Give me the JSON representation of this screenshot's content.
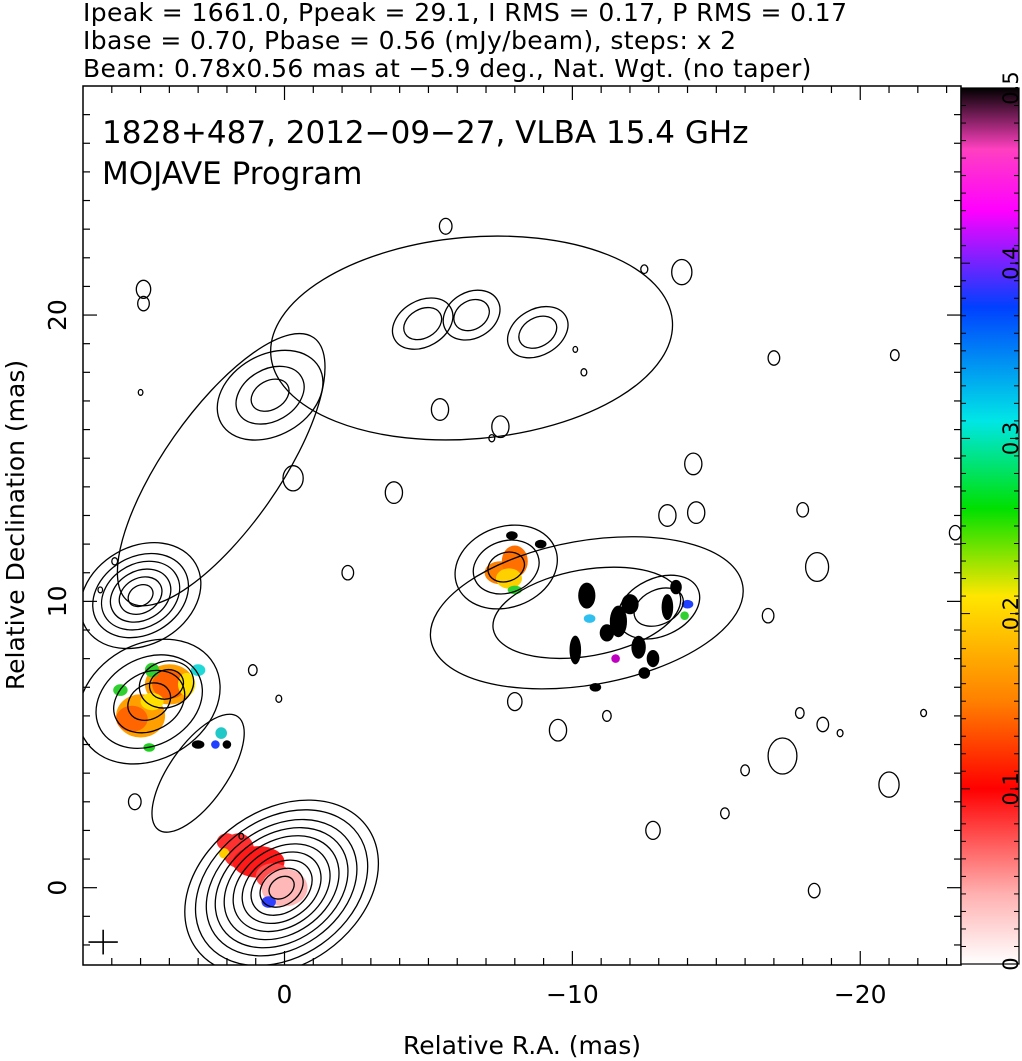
{
  "header": {
    "line1": "Ipeak = 1661.0, Ppeak = 29.1, I RMS = 0.17, P RMS = 0.17",
    "line2": "Ibase = 0.70, Pbase = 0.56 (mJy/beam), steps: x 2",
    "line3": "Beam: 0.78x0.56 mas at −5.9 deg., Nat. Wgt. (no taper)"
  },
  "chart_data": {
    "type": "heatmap",
    "title": "1828+487, 2012−09−27, VLBA 15.4 GHz",
    "subtitle": "MOJAVE Program",
    "xlabel": "Relative R.A. (mas)",
    "ylabel": "Relative Declination (mas)",
    "xlim": [
      7,
      -23.5
    ],
    "ylim": [
      -2.7,
      28
    ],
    "x_ticks": [
      0,
      -10,
      -20
    ],
    "x_tick_labels": [
      "0",
      "−10",
      "−20"
    ],
    "y_ticks": [
      0,
      10,
      20
    ],
    "y_tick_labels": [
      "0",
      "10",
      "20"
    ],
    "colorbar": {
      "range": [
        0,
        0.5
      ],
      "ticks": [
        0,
        0.1,
        0.2,
        0.3,
        0.4,
        0.5
      ],
      "tick_labels": [
        "0",
        "0.1",
        "0.2",
        "0.3",
        "0.4",
        "0.5"
      ],
      "colors": [
        "#ffffff",
        "#ffb0b0",
        "#ff0000",
        "#ff8000",
        "#ffe600",
        "#00e000",
        "#00e6e6",
        "#0040ff",
        "#ff00ff",
        "#ff40c0",
        "#000000"
      ]
    },
    "beam": {
      "major": 0.78,
      "minor": 0.56,
      "pa_deg": -5.9,
      "x": 6.3,
      "y": -1.9
    },
    "contour_groups": [
      {
        "name": "core",
        "x": 0.1,
        "y": 0.0,
        "radii": [
          0.35,
          0.6,
          0.85,
          1.1,
          1.35,
          1.6,
          1.85,
          2.1,
          2.4,
          2.7
        ],
        "elong": 1.35,
        "angle_deg": 35
      },
      {
        "name": "inner-jet",
        "x": 3.0,
        "y": 4.0,
        "radii": [
          1.0
        ],
        "elong": 2.4,
        "angle_deg": 55
      },
      {
        "name": "knot-B",
        "x": 4.7,
        "y": 6.5,
        "radii": [
          0.6,
          1.0,
          1.5,
          2.0
        ],
        "elong": 1.3,
        "angle_deg": 30
      },
      {
        "name": "knot-A",
        "x": 4.1,
        "y": 7.1,
        "radii": [
          0.5,
          0.8
        ],
        "elong": 1.2,
        "angle_deg": 20
      },
      {
        "name": "east-blob",
        "x": 5.0,
        "y": 10.2,
        "radii": [
          0.35,
          0.6,
          0.85,
          1.1,
          1.35,
          1.7
        ],
        "elong": 1.3,
        "angle_deg": 30
      },
      {
        "name": "east-arm",
        "x": 2.2,
        "y": 14.6,
        "radii": [
          2.0
        ],
        "elong": 2.8,
        "angle_deg": 55
      },
      {
        "name": "east-top",
        "x": 0.5,
        "y": 17.2,
        "radii": [
          0.5,
          0.9,
          1.4
        ],
        "elong": 1.4,
        "angle_deg": 30
      },
      {
        "name": "mid-clump",
        "x": -7.7,
        "y": 11.2,
        "radii": [
          0.5,
          0.9,
          1.4
        ],
        "elong": 1.3,
        "angle_deg": 20
      },
      {
        "name": "west-jet",
        "x": -10.5,
        "y": 9.6,
        "radii": [
          1.5,
          2.5
        ],
        "elong": 2.2,
        "angle_deg": 10
      },
      {
        "name": "west-knot",
        "x": -13.0,
        "y": 9.8,
        "radii": [
          0.6,
          1.0
        ],
        "elong": 1.5,
        "angle_deg": 25
      },
      {
        "name": "north-region",
        "x": -6.5,
        "y": 19.2,
        "radii": [
          3.5
        ],
        "elong": 2.0,
        "angle_deg": 5
      },
      {
        "name": "north-knot-1",
        "x": -4.8,
        "y": 19.7,
        "radii": [
          0.5,
          0.8
        ],
        "elong": 1.4,
        "angle_deg": 30
      },
      {
        "name": "north-knot-2",
        "x": -6.5,
        "y": 20.0,
        "radii": [
          0.5,
          0.8
        ],
        "elong": 1.3,
        "angle_deg": 30
      },
      {
        "name": "north-knot-3",
        "x": -8.8,
        "y": 19.4,
        "radii": [
          0.5,
          0.8
        ],
        "elong": 1.4,
        "angle_deg": 30
      }
    ],
    "noise_contours": [
      {
        "x": 4.9,
        "y": 20.9,
        "r": 0.25
      },
      {
        "x": 4.9,
        "y": 20.4,
        "r": 0.2
      },
      {
        "x": 5.0,
        "y": 17.3,
        "r": 0.08
      },
      {
        "x": 5.9,
        "y": 11.4,
        "r": 0.1
      },
      {
        "x": 6.4,
        "y": 10.4,
        "r": 0.08
      },
      {
        "x": -2.2,
        "y": 11.0,
        "r": 0.2
      },
      {
        "x": 1.1,
        "y": 7.6,
        "r": 0.15
      },
      {
        "x": 0.2,
        "y": 6.6,
        "r": 0.1
      },
      {
        "x": 5.2,
        "y": 3.0,
        "r": 0.22
      },
      {
        "x": 1.5,
        "y": 1.8,
        "r": 0.08
      },
      {
        "x": -5.6,
        "y": 23.1,
        "r": 0.22
      },
      {
        "x": -3.8,
        "y": 13.8,
        "r": 0.3
      },
      {
        "x": -7.5,
        "y": 16.1,
        "r": 0.3
      },
      {
        "x": -5.4,
        "y": 16.7,
        "r": 0.3
      },
      {
        "x": -14.2,
        "y": 14.8,
        "r": 0.3
      },
      {
        "x": -13.3,
        "y": 13.0,
        "r": 0.3
      },
      {
        "x": -14.3,
        "y": 13.1,
        "r": 0.3
      },
      {
        "x": -12.5,
        "y": 21.6,
        "r": 0.12
      },
      {
        "x": -13.8,
        "y": 21.5,
        "r": 0.35
      },
      {
        "x": -17.0,
        "y": 18.5,
        "r": 0.2
      },
      {
        "x": -21.2,
        "y": 18.6,
        "r": 0.15
      },
      {
        "x": -10.4,
        "y": 18.0,
        "r": 0.1
      },
      {
        "x": -10.1,
        "y": 18.8,
        "r": 0.08
      },
      {
        "x": -7.2,
        "y": 15.7,
        "r": 0.1
      },
      {
        "x": -18.0,
        "y": 13.2,
        "r": 0.2
      },
      {
        "x": -18.5,
        "y": 11.2,
        "r": 0.4
      },
      {
        "x": -16.8,
        "y": 9.5,
        "r": 0.2
      },
      {
        "x": -8.0,
        "y": 6.5,
        "r": 0.25
      },
      {
        "x": -9.5,
        "y": 5.5,
        "r": 0.3
      },
      {
        "x": -11.2,
        "y": 6.0,
        "r": 0.15
      },
      {
        "x": -17.3,
        "y": 4.6,
        "r": 0.5
      },
      {
        "x": -16.0,
        "y": 4.1,
        "r": 0.15
      },
      {
        "x": -15.3,
        "y": 2.6,
        "r": 0.15
      },
      {
        "x": -12.8,
        "y": 2.0,
        "r": 0.25
      },
      {
        "x": -18.7,
        "y": 5.7,
        "r": 0.2
      },
      {
        "x": -19.3,
        "y": 5.4,
        "r": 0.1
      },
      {
        "x": -17.9,
        "y": 6.1,
        "r": 0.15
      },
      {
        "x": -22.2,
        "y": 6.1,
        "r": 0.1
      },
      {
        "x": -21.0,
        "y": 3.6,
        "r": 0.35
      },
      {
        "x": -18.4,
        "y": -0.1,
        "r": 0.2
      },
      {
        "x": -23.3,
        "y": 12.4,
        "r": 0.2
      },
      {
        "x": -0.3,
        "y": 14.3,
        "r": 0.35
      }
    ],
    "pol_patches": [
      {
        "x": 1.6,
        "y": 1.3,
        "rx": 0.55,
        "ry": 0.6,
        "color": "#ff3030"
      },
      {
        "x": 0.9,
        "y": 0.9,
        "rx": 0.9,
        "ry": 0.55,
        "color": "#ff1a1a"
      },
      {
        "x": 0.4,
        "y": 0.4,
        "rx": 0.6,
        "ry": 0.45,
        "color": "#ff5050"
      },
      {
        "x": 2.0,
        "y": 1.6,
        "rx": 0.35,
        "ry": 0.3,
        "color": "#ff3030"
      },
      {
        "x": 2.1,
        "y": 1.2,
        "rx": 0.18,
        "ry": 0.18,
        "color": "#ffcc00"
      },
      {
        "x": 0.0,
        "y": 0.0,
        "rx": 0.8,
        "ry": 0.65,
        "color": "#ffb8b8"
      },
      {
        "x": 0.55,
        "y": -0.5,
        "rx": 0.25,
        "ry": 0.2,
        "color": "#3040ff"
      },
      {
        "x": 4.0,
        "y": 7.1,
        "rx": 0.85,
        "ry": 0.7,
        "color": "#ffa000"
      },
      {
        "x": 4.0,
        "y": 7.1,
        "rx": 0.6,
        "ry": 0.5,
        "color": "#ff6000"
      },
      {
        "x": 5.0,
        "y": 6.0,
        "rx": 0.85,
        "ry": 0.75,
        "color": "#ffa000"
      },
      {
        "x": 5.3,
        "y": 5.9,
        "rx": 0.55,
        "ry": 0.45,
        "color": "#ff6500"
      },
      {
        "x": 3.4,
        "y": 7.1,
        "rx": 0.3,
        "ry": 0.4,
        "color": "#ffe000"
      },
      {
        "x": 4.6,
        "y": 6.5,
        "rx": 0.4,
        "ry": 0.3,
        "color": "#ffe000"
      },
      {
        "x": 4.6,
        "y": 7.6,
        "rx": 0.25,
        "ry": 0.25,
        "color": "#30d030"
      },
      {
        "x": 3.0,
        "y": 7.6,
        "rx": 0.25,
        "ry": 0.2,
        "color": "#1fd8d8"
      },
      {
        "x": 5.7,
        "y": 6.9,
        "rx": 0.25,
        "ry": 0.2,
        "color": "#30d030"
      },
      {
        "x": 2.2,
        "y": 5.4,
        "rx": 0.2,
        "ry": 0.2,
        "color": "#20c8c8"
      },
      {
        "x": 2.4,
        "y": 5.0,
        "rx": 0.15,
        "ry": 0.15,
        "color": "#2040ff"
      },
      {
        "x": 2.0,
        "y": 5.0,
        "rx": 0.15,
        "ry": 0.15,
        "color": "#000000"
      },
      {
        "x": 4.7,
        "y": 4.9,
        "rx": 0.2,
        "ry": 0.15,
        "color": "#20d020"
      },
      {
        "x": 3.0,
        "y": 5.0,
        "rx": 0.22,
        "ry": 0.15,
        "color": "#000000"
      },
      {
        "x": -7.5,
        "y": 11.0,
        "rx": 0.55,
        "ry": 0.4,
        "color": "#ff8000"
      },
      {
        "x": -8.0,
        "y": 11.4,
        "rx": 0.45,
        "ry": 0.55,
        "color": "#ff7000"
      },
      {
        "x": -7.8,
        "y": 10.8,
        "rx": 0.45,
        "ry": 0.35,
        "color": "#ffd000"
      },
      {
        "x": -8.0,
        "y": 10.4,
        "rx": 0.25,
        "ry": 0.15,
        "color": "#30d030"
      },
      {
        "x": -7.9,
        "y": 12.3,
        "rx": 0.2,
        "ry": 0.15,
        "color": "#000000"
      },
      {
        "x": -8.9,
        "y": 12.0,
        "rx": 0.2,
        "ry": 0.15,
        "color": "#000000"
      },
      {
        "x": -10.5,
        "y": 10.2,
        "rx": 0.3,
        "ry": 0.45,
        "color": "#000000"
      },
      {
        "x": -11.6,
        "y": 9.3,
        "rx": 0.3,
        "ry": 0.55,
        "color": "#000000"
      },
      {
        "x": -12.0,
        "y": 9.9,
        "rx": 0.3,
        "ry": 0.35,
        "color": "#000000"
      },
      {
        "x": -10.1,
        "y": 8.3,
        "rx": 0.2,
        "ry": 0.5,
        "color": "#000000"
      },
      {
        "x": -12.3,
        "y": 8.4,
        "rx": 0.25,
        "ry": 0.4,
        "color": "#000000"
      },
      {
        "x": -12.8,
        "y": 8.0,
        "rx": 0.22,
        "ry": 0.3,
        "color": "#000000"
      },
      {
        "x": -13.3,
        "y": 9.8,
        "rx": 0.2,
        "ry": 0.45,
        "color": "#000000"
      },
      {
        "x": -13.6,
        "y": 10.5,
        "rx": 0.2,
        "ry": 0.25,
        "color": "#000000"
      },
      {
        "x": -14.0,
        "y": 9.9,
        "rx": 0.2,
        "ry": 0.15,
        "color": "#2040ff"
      },
      {
        "x": -13.9,
        "y": 9.5,
        "rx": 0.15,
        "ry": 0.15,
        "color": "#30d030"
      },
      {
        "x": -10.6,
        "y": 9.4,
        "rx": 0.2,
        "ry": 0.15,
        "color": "#30c0f0"
      },
      {
        "x": -11.2,
        "y": 8.9,
        "rx": 0.25,
        "ry": 0.3,
        "color": "#000000"
      },
      {
        "x": -12.5,
        "y": 7.5,
        "rx": 0.2,
        "ry": 0.2,
        "color": "#000000"
      },
      {
        "x": -10.8,
        "y": 7.0,
        "rx": 0.2,
        "ry": 0.15,
        "color": "#000000"
      },
      {
        "x": -11.5,
        "y": 8.0,
        "rx": 0.15,
        "ry": 0.15,
        "color": "#c000c0"
      }
    ]
  }
}
